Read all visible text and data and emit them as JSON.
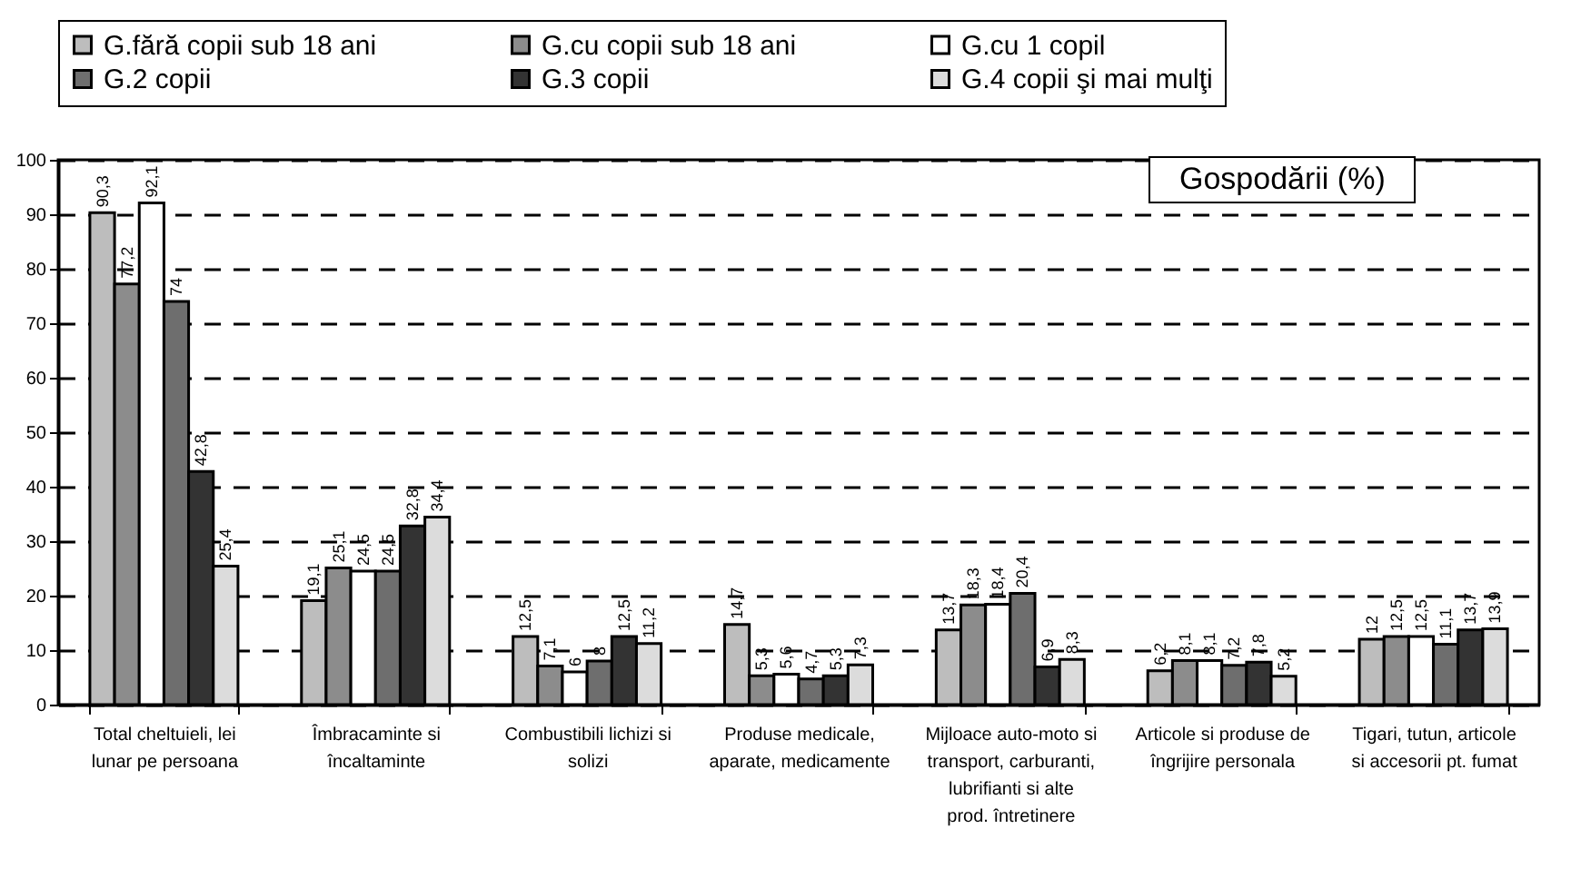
{
  "chart_data": {
    "type": "bar",
    "categories": [
      "Total cheltuieli, lei lunar pe persoana",
      "Îmbracaminte si încaltaminte",
      "Combustibili lichizi si solizi",
      "Produse medicale, aparate, medicamente",
      "Mijloace auto-moto si transport, carburanti, lubrifianti si alte prod. întretinere",
      "Articole si produse de îngrijire personala",
      "Tigari, tutun, articole si accesorii pt. fumat"
    ],
    "series": [
      {
        "name": "G.fără copii sub 18 ani",
        "color": "#bdbdbd",
        "values": [
          90.3,
          19.1,
          12.5,
          14.7,
          13.7,
          6.2,
          12
        ],
        "value_labels": [
          "90,3",
          "19,1",
          "12,5",
          "14,7",
          "13,7",
          "6,2",
          "12"
        ]
      },
      {
        "name": "G.cu copii sub 18 ani",
        "color": "#8c8c8c",
        "values": [
          77.2,
          25.1,
          7.1,
          5.3,
          18.3,
          8.1,
          12.5
        ],
        "value_labels": [
          "77,2",
          "25,1",
          "7,1",
          "5,3",
          "18,3",
          "8,1",
          "12,5"
        ]
      },
      {
        "name": "G.cu 1 copil",
        "color": "#ffffff",
        "values": [
          92.1,
          24.5,
          6,
          5.6,
          18.4,
          8.1,
          12.5
        ],
        "value_labels": [
          "92,1",
          "24,5",
          "6",
          "5,6",
          "18,4",
          "8,1",
          "12,5"
        ]
      },
      {
        "name": "G.2 copii",
        "color": "#6e6e6e",
        "values": [
          74,
          24.5,
          8,
          4.7,
          20.4,
          7.2,
          11.1
        ],
        "value_labels": [
          "74",
          "24,5",
          "8",
          "4,7",
          "20,4",
          "7,2",
          "11,1"
        ]
      },
      {
        "name": "G.3 copii",
        "color": "#333333",
        "values": [
          42.8,
          32.8,
          12.5,
          5.3,
          6.9,
          7.8,
          13.7
        ],
        "value_labels": [
          "42,8",
          "32,8",
          "12,5",
          "5,3",
          "6,9",
          "7,8",
          "13,7"
        ]
      },
      {
        "name": "G.4 copii şi mai mulţi",
        "color": "#dcdcdc",
        "values": [
          25.4,
          34.4,
          11.2,
          7.3,
          8.3,
          5.2,
          13.9
        ],
        "value_labels": [
          "25,4",
          "34,4",
          "11,2",
          "7,3",
          "8,3",
          "5,2",
          "13,9"
        ]
      }
    ],
    "ylim": [
      0,
      100
    ],
    "yticks": [
      0,
      10,
      20,
      30,
      40,
      50,
      60,
      70,
      80,
      90,
      100
    ],
    "grid": "y",
    "legend": "top",
    "annotations": [
      "Gospodării (%)"
    ]
  }
}
